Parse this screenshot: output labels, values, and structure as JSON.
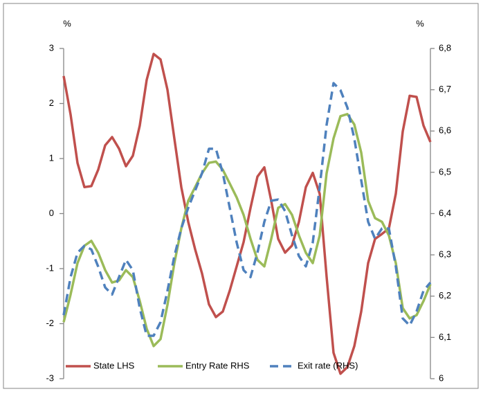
{
  "chart_data": {
    "type": "line",
    "y_label": "%",
    "y2_label": "%",
    "categories": [
      null,
      null,
      null,
      null,
      null,
      null,
      null,
      null,
      null,
      null,
      null,
      null,
      null,
      null,
      null,
      null,
      null,
      null,
      null,
      null,
      null,
      null,
      null,
      null,
      null,
      null,
      null,
      null,
      null,
      null,
      null,
      null,
      null,
      null,
      null,
      null,
      null,
      null,
      null,
      null,
      null,
      null,
      null,
      null,
      null,
      null,
      null,
      null,
      null,
      null,
      null,
      null,
      null,
      null
    ],
    "ylim": [
      -3,
      3
    ],
    "yticks": [
      -3,
      -2,
      -1,
      0,
      1,
      2,
      3
    ],
    "y2lim": [
      6,
      6.8
    ],
    "y2ticks": [
      6,
      {
        "value": 6.1,
        "label": "6,1"
      },
      {
        "value": 6.2,
        "label": "6,2"
      },
      {
        "value": 6.3,
        "label": "6,3"
      },
      {
        "value": 6.4,
        "label": "6,4"
      },
      {
        "value": 6.5,
        "label": "6,5"
      },
      {
        "value": 6.6,
        "label": "6,6"
      },
      {
        "value": 6.7,
        "label": "6,7"
      },
      {
        "value": 6.8,
        "label": "6,8"
      }
    ],
    "series": [
      {
        "name": "State LHS",
        "color": "#c0504d",
        "dash": false,
        "values": [
          2.5,
          1.8,
          0.92,
          0.48,
          0.5,
          0.8,
          1.24,
          1.39,
          1.18,
          0.86,
          1.05,
          1.6,
          2.43,
          2.9,
          2.8,
          2.25,
          1.36,
          0.48,
          -0.15,
          -0.65,
          -1.09,
          -1.65,
          -1.88,
          -1.78,
          -1.4,
          -0.96,
          -0.52,
          0.1,
          0.67,
          0.84,
          0.23,
          -0.46,
          -0.71,
          -0.58,
          -0.15,
          0.48,
          0.74,
          0.36,
          -1.15,
          -2.53,
          -2.91,
          -2.79,
          -2.41,
          -1.78,
          -0.9,
          -0.46,
          -0.37,
          -0.27,
          0.36,
          1.49,
          2.14,
          2.12,
          1.6,
          1.3
        ]
      },
      {
        "name": "Entry Rate RHS",
        "color": "#9bbb59",
        "dash": false,
        "axis": "y2",
        "values": [
          6.137,
          6.204,
          6.28,
          6.322,
          6.334,
          6.305,
          6.263,
          6.233,
          6.238,
          6.263,
          6.246,
          6.188,
          6.121,
          6.079,
          6.096,
          6.179,
          6.28,
          6.364,
          6.431,
          6.464,
          6.498,
          6.523,
          6.526,
          6.506,
          6.473,
          6.439,
          6.397,
          6.339,
          6.288,
          6.272,
          6.339,
          6.414,
          6.423,
          6.397,
          6.347,
          6.305,
          6.28,
          6.347,
          6.498,
          6.582,
          6.636,
          6.641,
          6.616,
          6.548,
          6.431,
          6.389,
          6.38,
          6.347,
          6.28,
          6.171,
          6.146,
          6.154,
          6.188,
          6.229
        ]
      },
      {
        "name": "Exit rate (RHS)",
        "color": "#4f81bd",
        "dash": true,
        "axis": "y2",
        "values": [
          6.154,
          6.246,
          6.305,
          6.322,
          6.313,
          6.271,
          6.221,
          6.204,
          6.246,
          6.288,
          6.263,
          6.171,
          6.104,
          6.104,
          6.137,
          6.213,
          6.297,
          6.364,
          6.414,
          6.456,
          6.498,
          6.557,
          6.557,
          6.498,
          6.414,
          6.33,
          6.263,
          6.246,
          6.305,
          6.38,
          6.431,
          6.434,
          6.406,
          6.347,
          6.297,
          6.272,
          6.33,
          6.464,
          6.615,
          6.716,
          6.699,
          6.657,
          6.582,
          6.481,
          6.38,
          6.339,
          6.364,
          6.364,
          6.272,
          6.146,
          6.129,
          6.163,
          6.213,
          6.233
        ]
      }
    ]
  }
}
